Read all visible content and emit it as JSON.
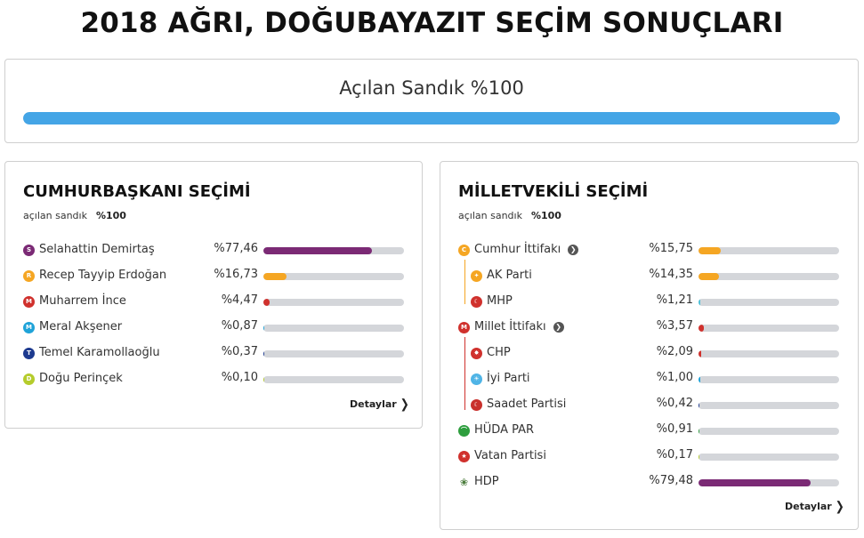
{
  "title": "2018 AĞRI, DOĞUBAYAZIT SEÇİM SONUÇLARI",
  "opened_box": {
    "label": "Açılan Sandık %100",
    "progress": 1.0,
    "color": "#44a5e6"
  },
  "president": {
    "title": "CUMHURBAŞKANI SEÇİMİ",
    "sub_label": "açılan sandık",
    "sub_value": "%100",
    "details": "Detaylar",
    "candidates": [
      {
        "letter": "S",
        "name": "Selahattin Demirtaş",
        "pct": "%77,46",
        "value": 77.46,
        "color": "#7b2a75"
      },
      {
        "letter": "R",
        "name": "Recep Tayyip Erdoğan",
        "pct": "%16,73",
        "value": 16.73,
        "color": "#f5a623"
      },
      {
        "letter": "M",
        "name": "Muharrem İnce",
        "pct": "%4,47",
        "value": 4.47,
        "color": "#d0312d"
      },
      {
        "letter": "M",
        "name": "Meral Akşener",
        "pct": "%0,87",
        "value": 0.87,
        "color": "#1fa3d8"
      },
      {
        "letter": "T",
        "name": "Temel Karamollaoğlu",
        "pct": "%0,37",
        "value": 0.37,
        "color": "#1d3a8f"
      },
      {
        "letter": "D",
        "name": "Doğu Perinçek",
        "pct": "%0,10",
        "value": 0.1,
        "color": "#b5cc2c"
      }
    ]
  },
  "parliament": {
    "title": "MİLLETVEKİLİ SEÇİMİ",
    "sub_label": "açılan sandık",
    "sub_value": "%100",
    "details": "Detaylar",
    "parties": [
      {
        "icon": "cumhur-alliance-icon",
        "letter": "C",
        "name": "Cumhur İttifakı",
        "pct": "%15,75",
        "value": 15.75,
        "color": "#f5a623",
        "alliance": true
      },
      {
        "icon": "ak-parti-icon",
        "letter": "",
        "name": "AK Parti",
        "pct": "%14,35",
        "value": 14.35,
        "color": "#f5a623",
        "member_of": "cumhur"
      },
      {
        "icon": "mhp-icon",
        "letter": "",
        "name": "MHP",
        "pct": "%1,21",
        "value": 1.21,
        "color": "#4fc0d8",
        "member_of": "cumhur"
      },
      {
        "icon": "millet-alliance-icon",
        "letter": "M",
        "name": "Millet İttifakı",
        "pct": "%3,57",
        "value": 3.57,
        "color": "#d0312d",
        "alliance": true
      },
      {
        "icon": "chp-icon",
        "letter": "",
        "name": "CHP",
        "pct": "%2,09",
        "value": 2.09,
        "color": "#d0312d",
        "member_of": "millet"
      },
      {
        "icon": "iyi-parti-icon",
        "letter": "",
        "name": "İyi Parti",
        "pct": "%1,00",
        "value": 1.0,
        "color": "#1fa3d8",
        "member_of": "millet"
      },
      {
        "icon": "saadet-icon",
        "letter": "",
        "name": "Saadet Partisi",
        "pct": "%0,42",
        "value": 0.42,
        "color": "#1d3a8f",
        "member_of": "millet"
      },
      {
        "icon": "huda-par-icon",
        "letter": "",
        "name": "HÜDA PAR",
        "pct": "%0,91",
        "value": 0.91,
        "color": "#2e9e3e"
      },
      {
        "icon": "vatan-icon",
        "letter": "",
        "name": "Vatan Partisi",
        "pct": "%0,17",
        "value": 0.17,
        "color": "#b5cc2c"
      },
      {
        "icon": "hdp-icon",
        "letter": "",
        "name": "HDP",
        "pct": "%79,48",
        "value": 79.48,
        "color": "#7b2a75"
      }
    ]
  }
}
